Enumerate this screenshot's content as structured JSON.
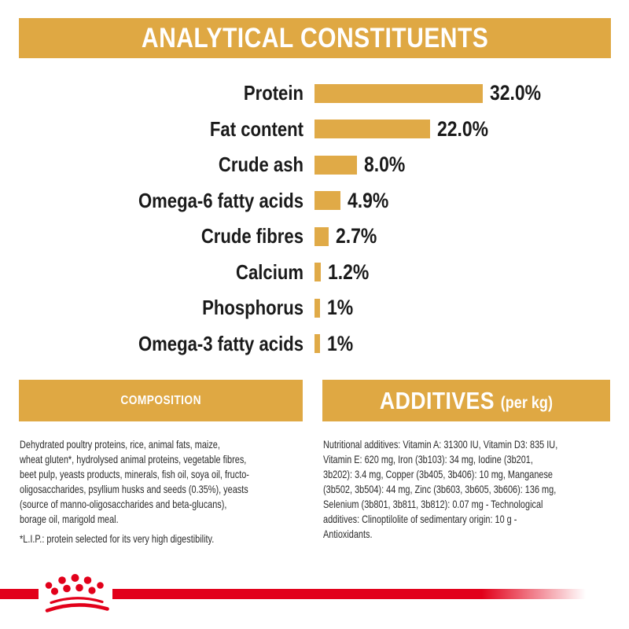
{
  "colors": {
    "gold": "#dfa843",
    "bar_gold": "#e0aa47",
    "red": "#e2001a",
    "text_dark": "#1d1d1b"
  },
  "analytical": {
    "title": "ANALYTICAL CONSTITUENTS"
  },
  "chart_data": {
    "type": "bar",
    "orientation": "horizontal",
    "unit": "percent",
    "categories": [
      "Protein",
      "Fat content",
      "Crude ash",
      "Omega-6 fatty acids",
      "Crude fibres",
      "Calcium",
      "Phosphorus",
      "Omega-3 fatty acids"
    ],
    "values": [
      32.0,
      22.0,
      8.0,
      4.9,
      2.7,
      1.2,
      1,
      1
    ],
    "value_labels": [
      "32.0%",
      "22.0%",
      "8.0%",
      "4.9%",
      "2.7%",
      "1.2%",
      "1%",
      "1%"
    ],
    "xlim": [
      0,
      32
    ],
    "bar_color": "#e0aa47",
    "title": "ANALYTICAL CONSTITUENTS",
    "grid": false,
    "legend": false
  },
  "composition": {
    "title": "COMPOSITION",
    "body_lines": [
      "Dehydrated poultry proteins, rice, animal fats, maize,",
      "wheat gluten*, hydrolysed animal proteins, vegetable fibres,",
      "beet pulp, yeasts products, minerals, fish oil, soya oil, fructo-",
      "oligosaccharides, psyllium husks and seeds (0.35%), yeasts",
      "(source of manno-oligosaccharides and beta-glucans),",
      "borage oil, marigold meal."
    ],
    "footnote": "*L.I.P.: protein selected for its very high digestibility."
  },
  "additives": {
    "title": "ADDITIVES",
    "title_suffix": "(per kg)",
    "body_lines": [
      "Nutritional additives: Vitamin A: 31300 IU, Vitamin D3: 835 IU,",
      "Vitamin E: 620 mg, Iron (3b103): 34 mg, Iodine (3b201,",
      "3b202): 3.4 mg, Copper (3b405, 3b406): 10 mg, Manganese",
      "(3b502, 3b504): 44 mg, Zinc (3b603, 3b605, 3b606): 136 mg,",
      "Selenium (3b801, 3b811, 3b812): 0.07 mg - Technological",
      "additives: Clinoptilolite of sedimentary origin: 10 g -",
      "Antioxidants."
    ]
  },
  "footer": {
    "logo": "royal-canin-crown"
  }
}
